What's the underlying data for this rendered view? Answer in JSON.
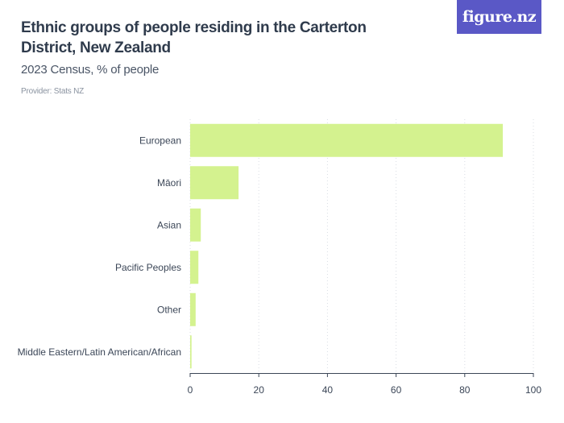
{
  "header": {
    "title": "Ethnic groups of people residing in the Carterton District, New Zealand",
    "subtitle": "2023 Census, % of people",
    "provider": "Provider: Stats NZ"
  },
  "logo": {
    "text": "figure.nz",
    "color": "#5a58c6"
  },
  "chart_data": {
    "type": "bar",
    "orientation": "horizontal",
    "categories": [
      "European",
      "Māori",
      "Asian",
      "Pacific Peoples",
      "Other",
      "Middle Eastern/Latin American/African"
    ],
    "values": [
      91.1,
      14.1,
      3.1,
      2.4,
      1.6,
      0.4
    ],
    "xlim": [
      0,
      100
    ],
    "xticks": [
      0,
      20,
      40,
      60,
      80,
      100
    ],
    "grid": true,
    "bar_color": "#d4f28f"
  }
}
